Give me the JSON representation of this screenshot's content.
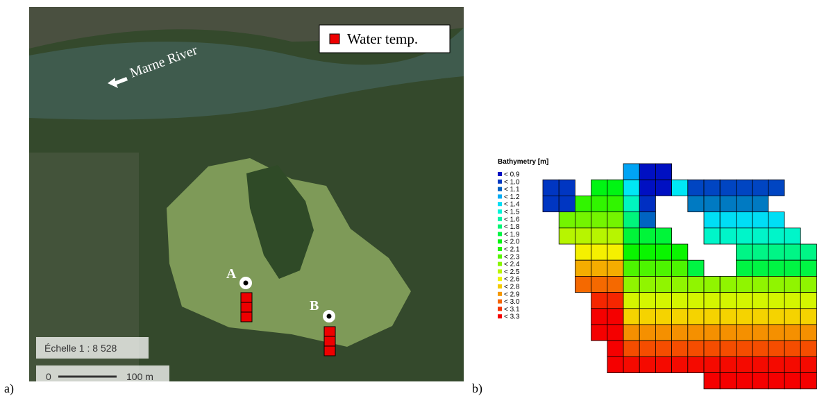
{
  "panel_a": {
    "label": "a)",
    "river_label": "Marne River",
    "legend": "Water temp.",
    "stations": [
      "A",
      "B"
    ],
    "scale_text": "Échelle 1 : 8 528",
    "scale_start": "0",
    "scale_end": "100 m"
  },
  "panel_b": {
    "label": "b)",
    "legend_title": "Bathymetry [m]",
    "legend_items": [
      "< 0.9",
      "< 1.0",
      "< 1.1",
      "< 1.2",
      "< 1.4",
      "< 1.5",
      "< 1.6",
      "< 1.8",
      "< 1.9",
      "< 2.0",
      "< 2.1",
      "< 2.3",
      "< 2.4",
      "< 2.5",
      "< 2.6",
      "< 2.8",
      "< 2.9",
      "< 3.0",
      "< 3.1",
      "< 3.3"
    ]
  }
}
